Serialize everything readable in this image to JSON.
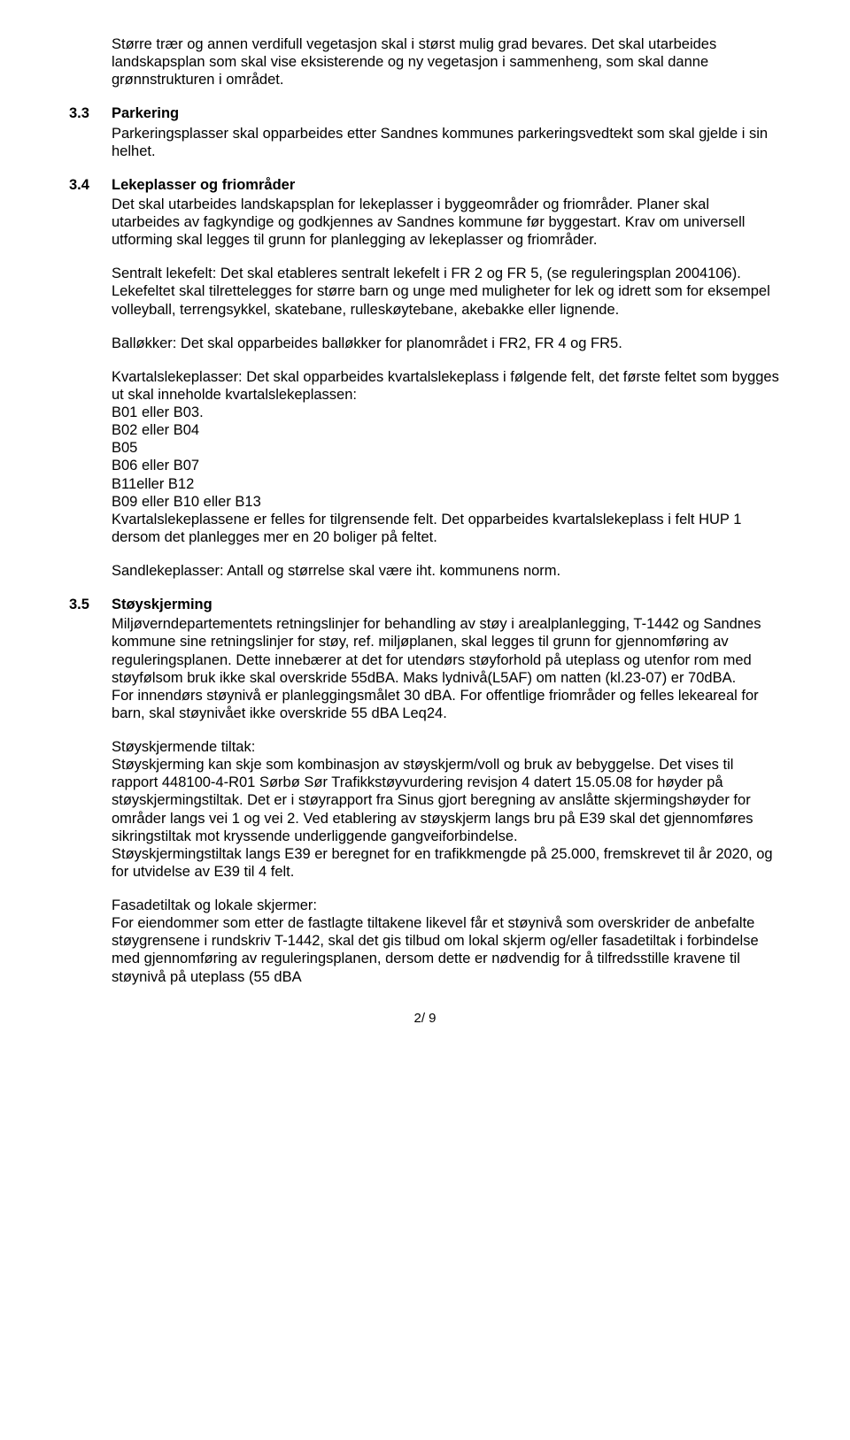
{
  "intro": "Større trær og annen verdifull vegetasjon skal i størst mulig grad bevares. Det skal utarbeides landskapsplan som skal vise eksisterende og ny vegetasjon i sammenheng, som skal danne grønnstrukturen i området.",
  "s33": {
    "num": "3.3",
    "title": "Parkering",
    "body": "Parkeringsplasser skal opparbeides etter Sandnes kommunes parkeringsvedtekt som skal gjelde i sin helhet."
  },
  "s34": {
    "num": "3.4",
    "title": "Lekeplasser og friområder",
    "p1": "Det skal utarbeides landskapsplan for lekeplasser i byggeområder og friområder. Planer skal utarbeides av fagkyndige og godkjennes av Sandnes kommune før byggestart. Krav om universell utforming skal legges til grunn for planlegging av lekeplasser og friområder.",
    "p2": "Sentralt lekefelt: Det skal etableres sentralt lekefelt i FR 2 og FR 5, (se reguleringsplan 2004106). Lekefeltet skal tilrettelegges for større barn og unge med muligheter for lek og idrett som for eksempel volleyball, terrengsykkel, skatebane, rulleskøytebane, akebakke eller lignende.",
    "p3": "Balløkker: Det skal opparbeides balløkker for planområdet i FR2, FR 4 og FR5.",
    "p4a": "Kvartalslekeplasser: Det skal opparbeides kvartalslekeplass i følgende felt, det første feltet som bygges ut skal inneholde kvartalslekeplassen:",
    "list": [
      "B01 eller B03.",
      "B02 eller B04",
      "B05",
      "B06 eller B07",
      "B11eller B12",
      "B09 eller B10 eller B13"
    ],
    "p4b": "Kvartalslekeplassene er felles for tilgrensende felt. Det opparbeides kvartalslekeplass i felt HUP 1 dersom det planlegges mer en 20 boliger på feltet.",
    "p5": "Sandlekeplasser: Antall og størrelse skal være iht. kommunens norm."
  },
  "s35": {
    "num": "3.5",
    "title": "Støyskjerming",
    "p1": "Miljøverndepartementets retningslinjer for behandling av støy i arealplanlegging, T-1442 og Sandnes kommune sine retningslinjer for støy, ref. miljøplanen, skal legges til grunn for gjennomføring av reguleringsplanen. Dette innebærer at det for utendørs støyforhold på uteplass og utenfor rom med støyfølsom bruk ikke skal overskride 55dBA. Maks lydnivå(L5AF) om natten (kl.23-07) er 70dBA.",
    "p1b": "For innendørs støynivå er planleggingsmålet 30 dBA. For offentlige friområder og felles lekeareal for barn, skal støynivået ikke overskride 55 dBA Leq24.",
    "p2a": "Støyskjermende tiltak:",
    "p2b": "Støyskjerming kan skje som kombinasjon av støyskjerm/voll og bruk av bebyggelse. Det vises til rapport 448100-4-R01 Sørbø Sør Trafikkstøyvurdering revisjon 4 datert 15.05.08 for høyder på støyskjermingstiltak. Det er i støyrapport fra Sinus gjort beregning av anslåtte skjermingshøyder for områder langs vei 1 og vei 2. Ved etablering av støyskjerm langs bru på E39 skal det gjennomføres sikringstiltak mot kryssende underliggende gangveiforbindelse.",
    "p2c": "Støyskjermingstiltak langs E39 er beregnet for en trafikkmengde på 25.000, fremskrevet til år 2020, og for utvidelse av E39 til 4 felt.",
    "p3a": "Fasadetiltak og lokale skjermer:",
    "p3b": "For eiendommer som etter de fastlagte tiltakene likevel får et støynivå som overskrider de anbefalte støygrensene i rundskriv T-1442, skal det gis tilbud om lokal skjerm og/eller fasadetiltak i forbindelse med gjennomføring av reguleringsplanen, dersom dette er nødvendig for å tilfredsstille kravene til støynivå på uteplass (55 dBA"
  },
  "pagenum": "2/ 9"
}
